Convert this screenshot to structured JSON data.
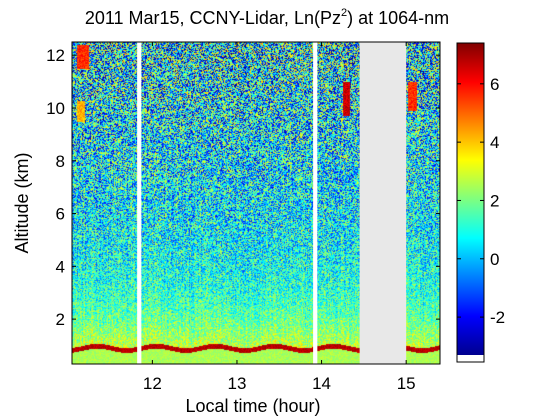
{
  "chart_data": {
    "type": "heatmap",
    "title": "2011 Mar15, CCNY-Lidar, Ln(Pz",
    "title_sup": "2",
    "title_suffix": ") at 1064-nm",
    "xlabel": "Local time (hour)",
    "ylabel": "Altitude (km)",
    "xlim": [
      11.05,
      15.4
    ],
    "ylim": [
      0.3,
      12.5
    ],
    "xticks": [
      {
        "v": 12,
        "label": "12"
      },
      {
        "v": 13,
        "label": "13"
      },
      {
        "v": 14,
        "label": "14"
      },
      {
        "v": 15,
        "label": "15"
      }
    ],
    "yticks": [
      {
        "v": 2,
        "label": "2"
      },
      {
        "v": 4,
        "label": "4"
      },
      {
        "v": 6,
        "label": "6"
      },
      {
        "v": 8,
        "label": "8"
      },
      {
        "v": 10,
        "label": "10"
      },
      {
        "v": 12,
        "label": "12"
      }
    ],
    "colorbar": {
      "range": [
        -3.3,
        7.4
      ],
      "ticks": [
        {
          "v": -2,
          "label": "-2"
        },
        {
          "v": 0,
          "label": "0"
        },
        {
          "v": 2,
          "label": "2"
        },
        {
          "v": 4,
          "label": "4"
        },
        {
          "v": 6,
          "label": "6"
        }
      ],
      "colormap": "jet"
    },
    "background_level": 0.4,
    "boundary_layer": {
      "top_km": 1.0,
      "value": 6.8
    },
    "near_surface_value": 2.5,
    "data_gaps": [
      {
        "x0": 11.82,
        "x1": 11.87
      },
      {
        "x0": 13.9,
        "x1": 13.95
      },
      {
        "x0": 14.45,
        "x1": 15.0
      }
    ],
    "clouds": [
      {
        "t0": 11.1,
        "t1": 11.25,
        "z0": 11.5,
        "z1": 12.4,
        "value": 5.6
      },
      {
        "t0": 11.1,
        "t1": 11.2,
        "z0": 9.5,
        "z1": 10.3,
        "value": 4.2
      },
      {
        "t0": 14.25,
        "t1": 14.33,
        "z0": 9.7,
        "z1": 11.0,
        "value": 6.6
      },
      {
        "t0": 15.02,
        "t1": 15.12,
        "z0": 9.9,
        "z1": 11.0,
        "value": 5.6
      }
    ]
  }
}
